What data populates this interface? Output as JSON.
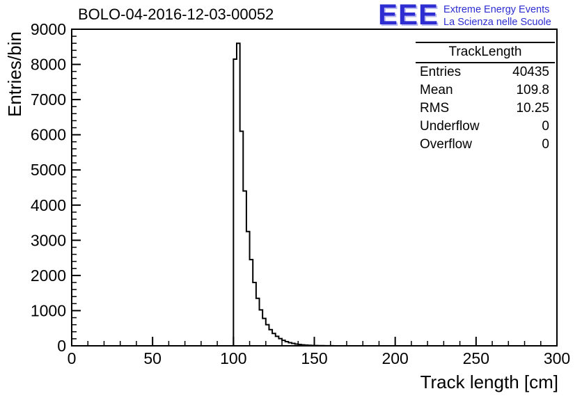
{
  "title": "BOLO-04-2016-12-03-00052",
  "logo": {
    "text": "EEE",
    "line1": "Extreme Energy Events",
    "line2": "La Scienza nelle Scuole",
    "color": "#2d2dd2"
  },
  "stats": {
    "header": "TrackLength",
    "rows": [
      {
        "label": "Entries",
        "value": "40435"
      },
      {
        "label": "Mean",
        "value": "109.8"
      },
      {
        "label": "RMS",
        "value": "10.25"
      },
      {
        "label": "Underflow",
        "value": "0"
      },
      {
        "label": "Overflow",
        "value": "0"
      }
    ]
  },
  "chart_data": {
    "type": "bar",
    "title": "BOLO-04-2016-12-03-00052",
    "xlabel": "Track length [cm]",
    "ylabel": "Entries/bin",
    "xlim": [
      0,
      300
    ],
    "ylim": [
      0,
      9000
    ],
    "xticks": [
      0,
      50,
      100,
      150,
      200,
      250,
      300
    ],
    "yticks": [
      0,
      1000,
      2000,
      3000,
      4000,
      5000,
      6000,
      7000,
      8000,
      9000
    ],
    "x_minor_step": 10,
    "y_minor_step": 200,
    "grid": false,
    "legend": false,
    "bin_start": 100,
    "bin_width": 2,
    "values": [
      8150,
      8600,
      6100,
      4400,
      3250,
      2450,
      1800,
      1350,
      1020,
      780,
      600,
      460,
      350,
      270,
      205,
      155,
      118,
      90,
      68,
      50,
      38,
      28,
      20,
      15,
      11,
      8,
      6,
      4,
      3,
      2,
      2,
      1,
      1,
      1,
      1
    ],
    "stats_box": {
      "entries": 40435,
      "mean": 109.8,
      "rms": 10.25,
      "underflow": 0,
      "overflow": 0
    }
  }
}
